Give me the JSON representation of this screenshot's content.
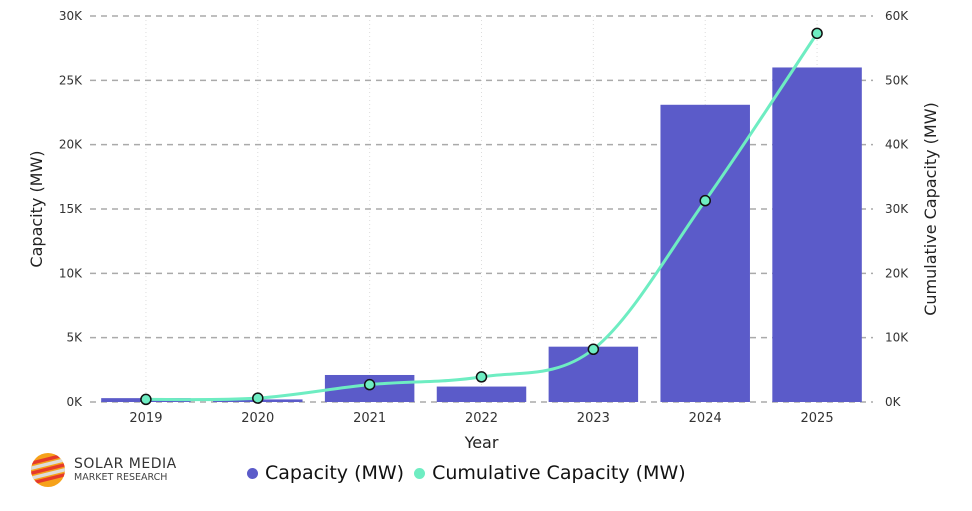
{
  "chart_data": {
    "type": "bar+line",
    "categories": [
      "2019",
      "2020",
      "2021",
      "2022",
      "2023",
      "2024",
      "2025"
    ],
    "series": [
      {
        "name": "Capacity (MW)",
        "type": "bar",
        "axis": "left",
        "color": "#5B5BC9",
        "values": [
          300,
          200,
          2100,
          1200,
          4300,
          23100,
          26000
        ]
      },
      {
        "name": "Cumulative Capacity (MW)",
        "type": "line",
        "axis": "right",
        "color": "#6EEDC2",
        "values": [
          400,
          600,
          2700,
          3900,
          8200,
          31300,
          57300
        ]
      }
    ],
    "xlabel": "Year",
    "ylabel": "Capacity (MW)",
    "y2label": "Cumulative Capacity (MW)",
    "ylim": [
      0,
      30000
    ],
    "y2lim": [
      0,
      60000
    ],
    "yticks": [
      "0K",
      "5K",
      "10K",
      "15K",
      "20K",
      "25K",
      "30K"
    ],
    "y2ticks": [
      "0K",
      "10K",
      "20K",
      "30K",
      "40K",
      "50K",
      "60K"
    ],
    "grid": true,
    "legend": "bottom"
  },
  "logo": {
    "line1": "SOLAR MEDIA",
    "line2": "MARKET RESEARCH"
  }
}
